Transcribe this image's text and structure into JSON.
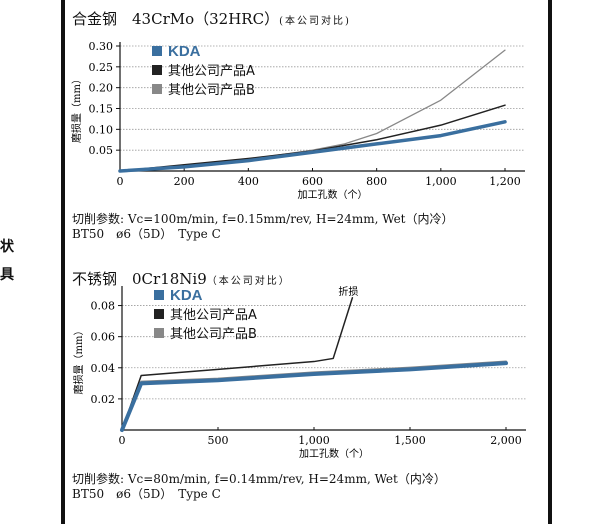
{
  "side_labels": [
    "状",
    "具"
  ],
  "chart1": {
    "title_main": "合金钢　43CrMo（32HRC）",
    "title_note": "(本公司对比)",
    "conditions_line1": "切削参数: Vc=100m/min, f=0.15mm/rev, H=24mm, Wet（内冷）",
    "conditions_line2": "BT50　ø6（5D）　Type C"
  },
  "chart2": {
    "title_main": "不锈钢　0Cr18Ni9",
    "title_note": "（本公司对比）",
    "annotation": "折损",
    "conditions_line1": "切削参数: Vc=80m/min, f=0.14mm/rev, H=24mm, Wet（内冷）",
    "conditions_line2": "BT50　ø6（5D）　Type C"
  },
  "chart_data": [
    {
      "type": "line",
      "title": "合金钢 43CrMo（32HRC）(本公司对比)",
      "xlabel": "加工孔数（个）",
      "ylabel": "磨损量（mm）",
      "xlim": [
        0,
        1200
      ],
      "ylim": [
        0,
        0.3
      ],
      "xticks": [
        "0",
        "200",
        "400",
        "600",
        "800",
        "1,000",
        "1,200"
      ],
      "yticks": [
        "0.05",
        "0.10",
        "0.15",
        "0.20",
        "0.25",
        "0.30"
      ],
      "grid": true,
      "legend_position": "top-left",
      "series": [
        {
          "name": "KDA",
          "color": "#3a6f9f",
          "x": [
            0,
            200,
            400,
            600,
            800,
            1000,
            1200
          ],
          "y": [
            0,
            0.01,
            0.025,
            0.045,
            0.065,
            0.085,
            0.118
          ]
        },
        {
          "name": "其他公司产品A",
          "color": "#222222",
          "x": [
            0,
            200,
            400,
            600,
            800,
            1000,
            1200
          ],
          "y": [
            0,
            0.015,
            0.03,
            0.048,
            0.075,
            0.11,
            0.158
          ]
        },
        {
          "name": "其他公司产品B",
          "color": "#888888",
          "x": [
            0,
            200,
            400,
            600,
            700,
            800,
            1000,
            1200
          ],
          "y": [
            0,
            0.012,
            0.028,
            0.05,
            0.065,
            0.09,
            0.17,
            0.29
          ]
        }
      ]
    },
    {
      "type": "line",
      "title": "不锈钢 0Cr18Ni9（本公司对比）",
      "xlabel": "加工孔数（个）",
      "ylabel": "磨损量（mm）",
      "xlim": [
        0,
        2000
      ],
      "ylim": [
        0,
        0.09
      ],
      "xticks": [
        "0",
        "500",
        "1,000",
        "1,500",
        "2,000"
      ],
      "yticks": [
        "0.02",
        "0.04",
        "0.06",
        "0.08"
      ],
      "grid": true,
      "legend_position": "top-left",
      "annotations": [
        {
          "text": "折损",
          "x": 1200,
          "y": 0.085
        }
      ],
      "series": [
        {
          "name": "KDA",
          "color": "#3a6f9f",
          "x": [
            0,
            100,
            500,
            1000,
            1500,
            2000
          ],
          "y": [
            0,
            0.03,
            0.032,
            0.036,
            0.039,
            0.043
          ]
        },
        {
          "name": "其他公司产品A",
          "color": "#222222",
          "x": [
            0,
            100,
            500,
            1000,
            1100,
            1200
          ],
          "y": [
            0,
            0.035,
            0.039,
            0.044,
            0.046,
            0.085
          ]
        },
        {
          "name": "其他公司产品B",
          "color": "#888888",
          "x": [
            0,
            100,
            500,
            1000,
            1500,
            2000
          ],
          "y": [
            0,
            0.031,
            0.033,
            0.037,
            0.04,
            0.044
          ]
        }
      ]
    }
  ]
}
